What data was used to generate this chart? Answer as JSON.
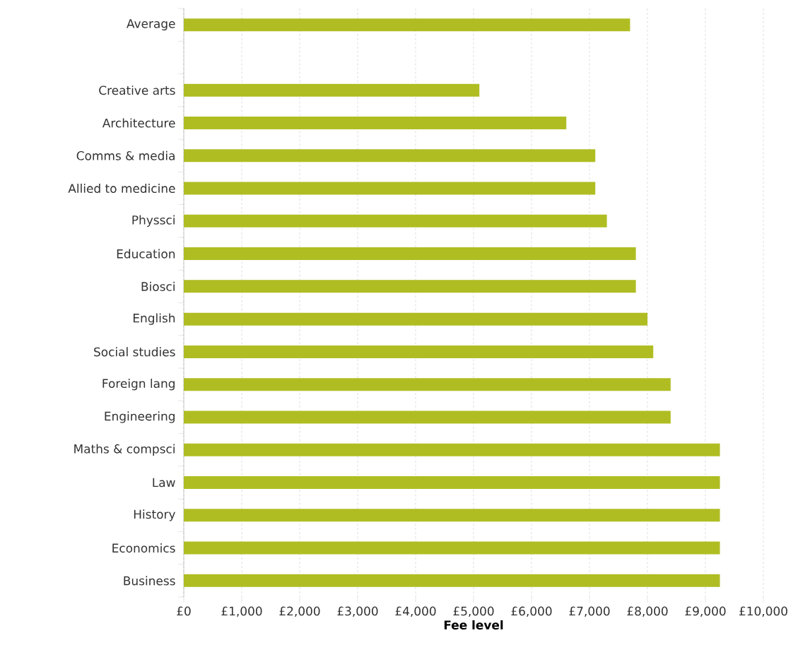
{
  "chart_data": {
    "type": "bar",
    "orientation": "horizontal",
    "xlabel": "Fee level",
    "categories": [
      "Average",
      null,
      "Creative arts",
      "Architecture",
      "Comms & media",
      "Allied to medicine",
      "Physsci",
      "Education",
      "Biosci",
      "English",
      "Social studies",
      "Foreign lang",
      "Engineering",
      "Maths & compsci",
      "Law",
      "History",
      "Economics",
      "Business"
    ],
    "values": [
      7700,
      null,
      5100,
      6600,
      7100,
      7100,
      7300,
      7800,
      7800,
      8000,
      8100,
      8400,
      8400,
      9250,
      9250,
      9250,
      9250,
      9250
    ],
    "color": "#afbd22",
    "xlim": [
      0,
      10000
    ],
    "xticks": [
      {
        "value": 0,
        "label": "£0"
      },
      {
        "value": 1000,
        "label": "£1,000"
      },
      {
        "value": 2000,
        "label": "£2,000"
      },
      {
        "value": 3000,
        "label": "£3,000"
      },
      {
        "value": 4000,
        "label": "£4,000"
      },
      {
        "value": 5000,
        "label": "£5,000"
      },
      {
        "value": 6000,
        "label": "£6,000"
      },
      {
        "value": 7000,
        "label": "£7,000"
      },
      {
        "value": 8000,
        "label": "£8,000"
      },
      {
        "value": 9000,
        "label": "£9,000"
      },
      {
        "value": 10000,
        "label": "£10,000"
      }
    ],
    "grid": "x"
  }
}
